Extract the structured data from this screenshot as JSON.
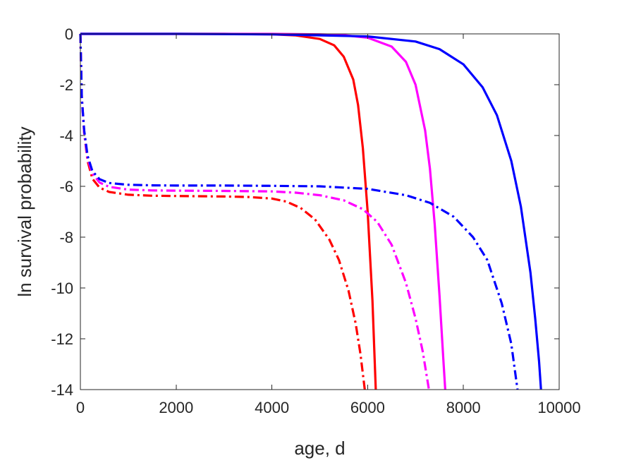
{
  "chart_data": {
    "type": "line",
    "title": "",
    "xlabel": "age, d",
    "ylabel": "ln survival probability",
    "xlim": [
      0,
      10000
    ],
    "ylim": [
      -14,
      0
    ],
    "xticks": [
      0,
      2000,
      4000,
      6000,
      8000,
      10000
    ],
    "xtick_labels": [
      "0",
      "2000",
      "4000",
      "6000",
      "8000",
      "10000"
    ],
    "yticks": [
      0,
      -2,
      -4,
      -6,
      -8,
      -10,
      -12,
      -14
    ],
    "ytick_labels": [
      "0",
      "-2",
      "-4",
      "-6",
      "-8",
      "-10",
      "-12",
      "-14"
    ],
    "grid": false,
    "legend": "none",
    "series": [
      {
        "color": "#ff0000",
        "style": "solid",
        "x": [
          0,
          1000,
          2000,
          3000,
          4000,
          4500,
          5000,
          5300,
          5500,
          5700,
          5800,
          5900,
          6000,
          6100,
          6170
        ],
        "y": [
          0,
          0,
          0,
          0,
          -0.02,
          -0.06,
          -0.2,
          -0.45,
          -0.9,
          -1.8,
          -2.8,
          -4.5,
          -7.0,
          -10.5,
          -14
        ]
      },
      {
        "color": "#ff00ff",
        "style": "solid",
        "x": [
          0,
          2000,
          4000,
          5000,
          5500,
          6000,
          6500,
          6800,
          7000,
          7200,
          7300,
          7400,
          7500,
          7580,
          7620
        ],
        "y": [
          0,
          0,
          0,
          -0.02,
          -0.05,
          -0.15,
          -0.5,
          -1.1,
          -2.0,
          -3.8,
          -5.3,
          -7.5,
          -10.3,
          -12.8,
          -14
        ]
      },
      {
        "color": "#0000ff",
        "style": "solid",
        "x": [
          0,
          2000,
          4000,
          6000,
          7000,
          7500,
          8000,
          8400,
          8700,
          9000,
          9200,
          9400,
          9500,
          9580,
          9620
        ],
        "y": [
          0,
          0,
          -0.02,
          -0.1,
          -0.3,
          -0.6,
          -1.2,
          -2.1,
          -3.2,
          -5.0,
          -6.8,
          -9.4,
          -11.2,
          -12.9,
          -14
        ]
      },
      {
        "color": "#ff0000",
        "style": "dashdot",
        "x": [
          0,
          30,
          80,
          150,
          250,
          400,
          600,
          1000,
          1500,
          2000,
          3000,
          3500,
          4000,
          4300,
          4600,
          4900,
          5200,
          5400,
          5600,
          5750,
          5850,
          5940
        ],
        "y": [
          0,
          -2.5,
          -3.9,
          -5.0,
          -5.7,
          -6.05,
          -6.22,
          -6.33,
          -6.37,
          -6.38,
          -6.4,
          -6.42,
          -6.48,
          -6.6,
          -6.85,
          -7.3,
          -8.1,
          -8.9,
          -10.1,
          -11.4,
          -12.6,
          -14
        ]
      },
      {
        "color": "#ff00ff",
        "style": "dashdot",
        "x": [
          0,
          30,
          80,
          150,
          250,
          400,
          600,
          1000,
          1500,
          2000,
          3000,
          4000,
          4500,
          5000,
          5500,
          5900,
          6200,
          6500,
          6800,
          7000,
          7150,
          7280
        ],
        "y": [
          0,
          -2.5,
          -3.9,
          -4.9,
          -5.5,
          -5.85,
          -6.02,
          -6.13,
          -6.16,
          -6.17,
          -6.18,
          -6.2,
          -6.25,
          -6.35,
          -6.55,
          -6.9,
          -7.4,
          -8.3,
          -9.8,
          -11.2,
          -12.5,
          -14
        ]
      },
      {
        "color": "#0000ff",
        "style": "dashdot",
        "x": [
          0,
          30,
          80,
          150,
          250,
          400,
          600,
          1000,
          1500,
          2000,
          3000,
          4000,
          5000,
          6000,
          6800,
          7300,
          7800,
          8200,
          8500,
          8800,
          9000,
          9130
        ],
        "y": [
          0,
          -2.5,
          -3.8,
          -4.8,
          -5.4,
          -5.72,
          -5.87,
          -5.94,
          -5.96,
          -5.97,
          -5.97,
          -5.98,
          -6.0,
          -6.1,
          -6.35,
          -6.65,
          -7.2,
          -8.0,
          -8.9,
          -10.6,
          -12.2,
          -14
        ]
      }
    ]
  }
}
